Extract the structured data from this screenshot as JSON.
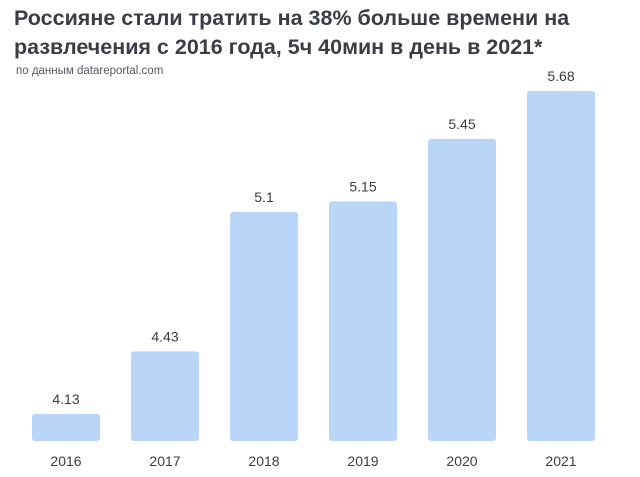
{
  "header": {
    "title": "Россияне стали тратить на 38% больше времени на развлечения с 2016 года, 5ч 40мин в день в 2021*",
    "subtitle": "по данным datareportal.com"
  },
  "colors": {
    "bar": "#b9d6f8",
    "text": "#3a3d45"
  },
  "chart_data": {
    "type": "bar",
    "categories": [
      "2016",
      "2017",
      "2018",
      "2019",
      "2020",
      "2021"
    ],
    "values": [
      4.13,
      4.43,
      5.1,
      5.15,
      5.45,
      5.68
    ],
    "value_labels": [
      "4.13",
      "4.43",
      "5.1",
      "5.15",
      "5.45",
      "5.68"
    ],
    "title": "Россияне стали тратить на 38% больше времени на развлечения с 2016 года, 5ч 40мин в день в 2021*",
    "subtitle": "по данным datareportal.com",
    "xlabel": "",
    "ylabel": "",
    "ylim": [
      4.0,
      5.68
    ],
    "grid": false,
    "legend": "none"
  }
}
